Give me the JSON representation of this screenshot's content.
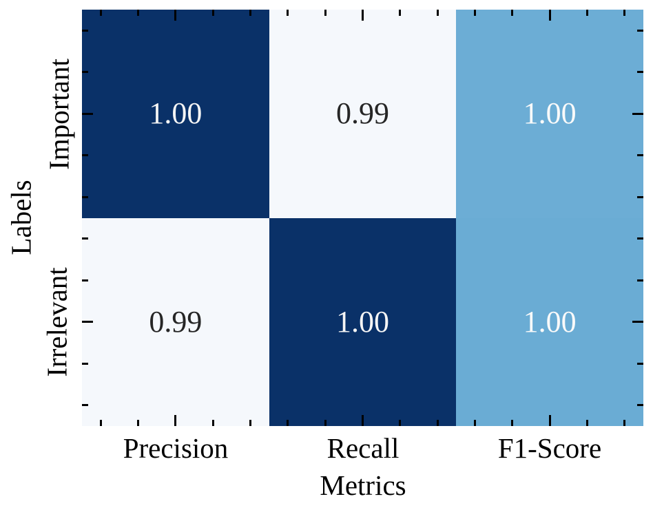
{
  "chart_data": {
    "type": "heatmap",
    "title": "",
    "xlabel": "Metrics",
    "ylabel": "Labels",
    "columns": [
      "Precision",
      "Recall",
      "F1-Score"
    ],
    "rows": [
      "Important",
      "Irrelevant"
    ],
    "values": [
      [
        1.0,
        0.99,
        1.0
      ],
      [
        0.99,
        1.0,
        1.0
      ]
    ],
    "legend": "none",
    "grid": false,
    "tick_style": "minor-and-major-ticks-inward-all-four-sides",
    "cells": [
      {
        "row": "Important",
        "col": "Precision",
        "text": "1.00",
        "bg": "#0a3168",
        "fg": "#f5f5f5"
      },
      {
        "row": "Important",
        "col": "Recall",
        "text": "0.99",
        "bg": "#f5f8fc",
        "fg": "#262626"
      },
      {
        "row": "Important",
        "col": "F1-Score",
        "text": "1.00",
        "bg": "#6cadd5",
        "fg": "#fafafa"
      },
      {
        "row": "Irrelevant",
        "col": "Precision",
        "text": "0.99",
        "bg": "#f5f8fc",
        "fg": "#262626"
      },
      {
        "row": "Irrelevant",
        "col": "Recall",
        "text": "1.00",
        "bg": "#0a3168",
        "fg": "#f5f5f5"
      },
      {
        "row": "Irrelevant",
        "col": "F1-Score",
        "text": "1.00",
        "bg": "#6aacd4",
        "fg": "#fafafa"
      }
    ],
    "colors": {
      "cmap_high": "#0a3168",
      "cmap_mid": "#6aacd4",
      "cmap_low": "#f5f8fc",
      "tick": "#000000",
      "axis_text": "#000000",
      "background": "#ffffff"
    }
  }
}
